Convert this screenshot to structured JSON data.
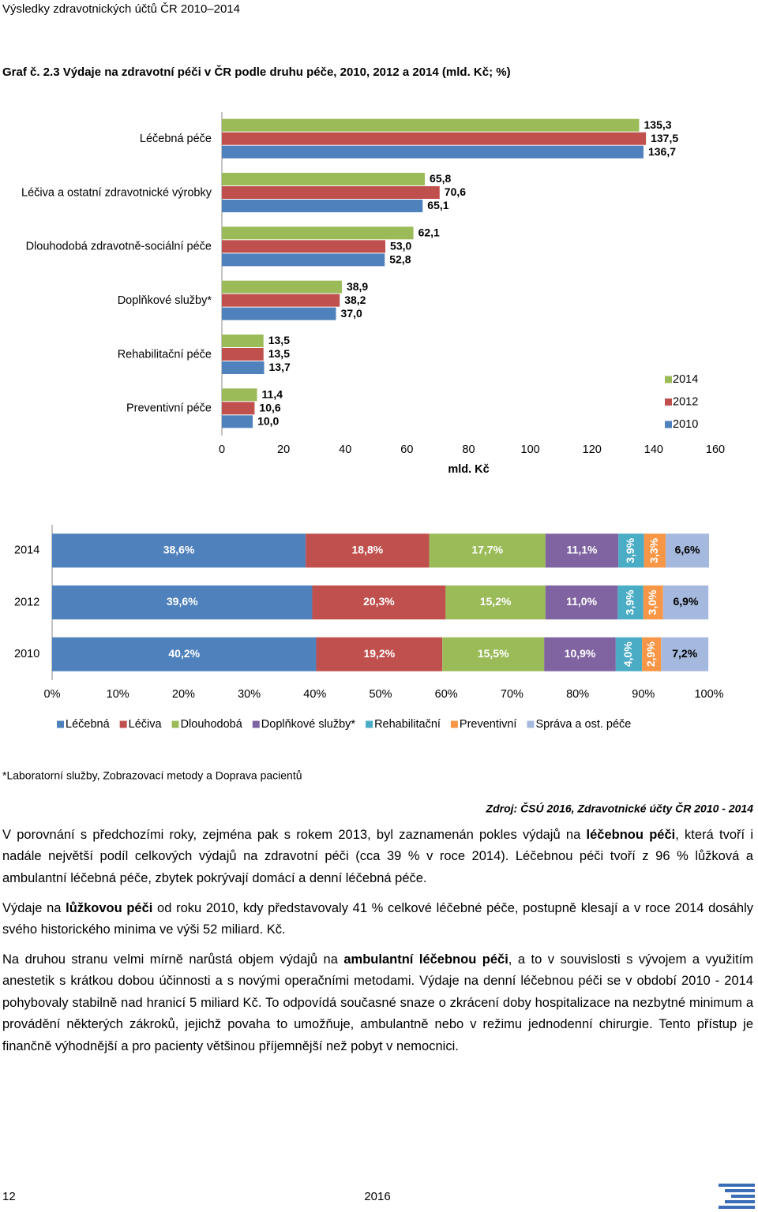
{
  "header": "Výsledky zdravotnických účtů ČR 2010–2014",
  "caption": "Graf č. 2.3 Výdaje na zdravotní péči v ČR podle druhu péče, 2010, 2012 a 2014 (mld. Kč; %)",
  "chart_data": [
    {
      "type": "bar",
      "orientation": "horizontal",
      "x_label": "mld. Kč",
      "categories": [
        "Léčebná péče",
        "Léčiva a ostatní zdravotnické výrobky",
        "Dlouhodobá zdravotně-sociální péče",
        "Doplňkové služby*",
        "Rehabilitační péče",
        "Preventivní péče"
      ],
      "series": [
        {
          "name": "2014",
          "color": "#9bbb59",
          "values": [
            135.3,
            65.8,
            62.1,
            38.9,
            13.5,
            11.4
          ],
          "value_labels": [
            "135,3",
            "65,8",
            "62,1",
            "38,9",
            "13,5",
            "11,4"
          ]
        },
        {
          "name": "2012",
          "color": "#c0504d",
          "values": [
            137.5,
            70.6,
            53.0,
            38.2,
            13.5,
            10.6
          ],
          "value_labels": [
            "137,5",
            "70,6",
            "53,0",
            "38,2",
            "13,5",
            "10,6"
          ]
        },
        {
          "name": "2010",
          "color": "#4f81bd",
          "values": [
            136.7,
            65.1,
            52.8,
            37.0,
            13.7,
            10.0
          ],
          "value_labels": [
            "136,7",
            "65,1",
            "52,8",
            "37,0",
            "13,7",
            "10,0"
          ]
        }
      ],
      "xlim": [
        0,
        160
      ],
      "xticks": [
        0,
        20,
        40,
        60,
        80,
        100,
        120,
        140,
        160
      ],
      "legend": "right"
    },
    {
      "type": "bar",
      "orientation": "horizontal",
      "stacked": true,
      "categories": [
        "2014",
        "2012",
        "2010"
      ],
      "series": [
        {
          "name": "Léčebná",
          "color": "#4f81bd",
          "values": [
            38.6,
            39.6,
            40.2
          ],
          "value_labels": [
            "38,6%",
            "39,6%",
            "40,2%"
          ]
        },
        {
          "name": "Léčiva",
          "color": "#c0504d",
          "values": [
            18.8,
            20.3,
            19.2
          ],
          "value_labels": [
            "18,8%",
            "20,3%",
            "19,2%"
          ]
        },
        {
          "name": "Dlouhodobá",
          "color": "#9bbb59",
          "values": [
            17.7,
            15.2,
            15.5
          ],
          "value_labels": [
            "17,7%",
            "15,2%",
            "15,5%"
          ]
        },
        {
          "name": "Doplňkové služby*",
          "color": "#8064a2",
          "values": [
            11.1,
            11.0,
            10.9
          ],
          "value_labels": [
            "11,1%",
            "11,0%",
            "10,9%"
          ]
        },
        {
          "name": "Rehabilitační",
          "color": "#4bacc6",
          "values": [
            3.9,
            3.9,
            4.0
          ],
          "value_labels": [
            "3,9%",
            "3,9%",
            "4,0%"
          ]
        },
        {
          "name": "Preventivní",
          "color": "#f79646",
          "values": [
            3.3,
            3.0,
            2.9
          ],
          "value_labels": [
            "3,3%",
            "3,0%",
            "2,9%"
          ]
        },
        {
          "name": "Správa a ost. péče",
          "color": "#a5b9de",
          "values": [
            6.6,
            6.9,
            7.2
          ],
          "value_labels": [
            "6,6%",
            "6,9%",
            "7,2%"
          ]
        }
      ],
      "xlim": [
        0,
        100
      ],
      "xticks": [
        {
          "value": 0,
          "label": "0%"
        },
        {
          "value": 10,
          "label": "10%"
        },
        {
          "value": 20,
          "label": "20%"
        },
        {
          "value": 30,
          "label": "30%"
        },
        {
          "value": 40,
          "label": "40%"
        },
        {
          "value": 50,
          "label": "50%"
        },
        {
          "value": 60,
          "label": "60%"
        },
        {
          "value": 70,
          "label": "70%"
        },
        {
          "value": 80,
          "label": "80%"
        },
        {
          "value": 90,
          "label": "90%"
        },
        {
          "value": 100,
          "label": "100%"
        }
      ],
      "legend": "bottom"
    }
  ],
  "footnote": "*Laboratorní služby, Zobrazovací metody a Doprava pacientů",
  "source": "Zdroj: ČSÚ 2016, Zdravotnické účty ČR 2010 - 2014",
  "paragraphs": [
    [
      {
        "text": "V porovnání s předchozími roky, zejména pak s rokem 2013, byl zaznamenán pokles výdajů na "
      },
      {
        "text": "léčebnou péči",
        "bold": true
      },
      {
        "text": ", která tvoří i nadále největší podíl celkových výdajů na zdravotní péči (cca 39 % v roce 2014). Léčebnou péči tvoří z 96 % lůžková a ambulantní léčebná péče, zbytek pokrývají domácí a denní léčebná péče."
      }
    ],
    [
      {
        "text": "Výdaje na "
      },
      {
        "text": "lůžkovou péči",
        "bold": true
      },
      {
        "text": " od roku 2010, kdy představovaly 41 % celkové léčebné péče, postupně klesají a v roce 2014 dosáhly svého historického minima ve výši 52 miliard. Kč."
      }
    ],
    [
      {
        "text": "Na druhou stranu velmi mírně narůstá objem výdajů na "
      },
      {
        "text": "ambulantní léčebnou péči",
        "bold": true
      },
      {
        "text": ", a to v souvislosti s vývojem a využitím anestetik s krátkou dobou účinnosti a s novými operačními metodami. Výdaje na denní léčebnou péči se v období 2010 - 2014 pohybovaly stabilně nad hranicí 5 miliard Kč. To odpovídá současné snaze o zkrácení doby hospitalizace na nezbytné minimum a provádění některých zákroků, jejichž povaha to umožňuje, ambulantně nebo v režimu jednodenní chirurgie. Tento přístup je finančně výhodnější a pro pacienty většinou příjemnější než pobyt v nemocnici."
      }
    ]
  ],
  "footer": {
    "page": "12",
    "year": "2016"
  }
}
